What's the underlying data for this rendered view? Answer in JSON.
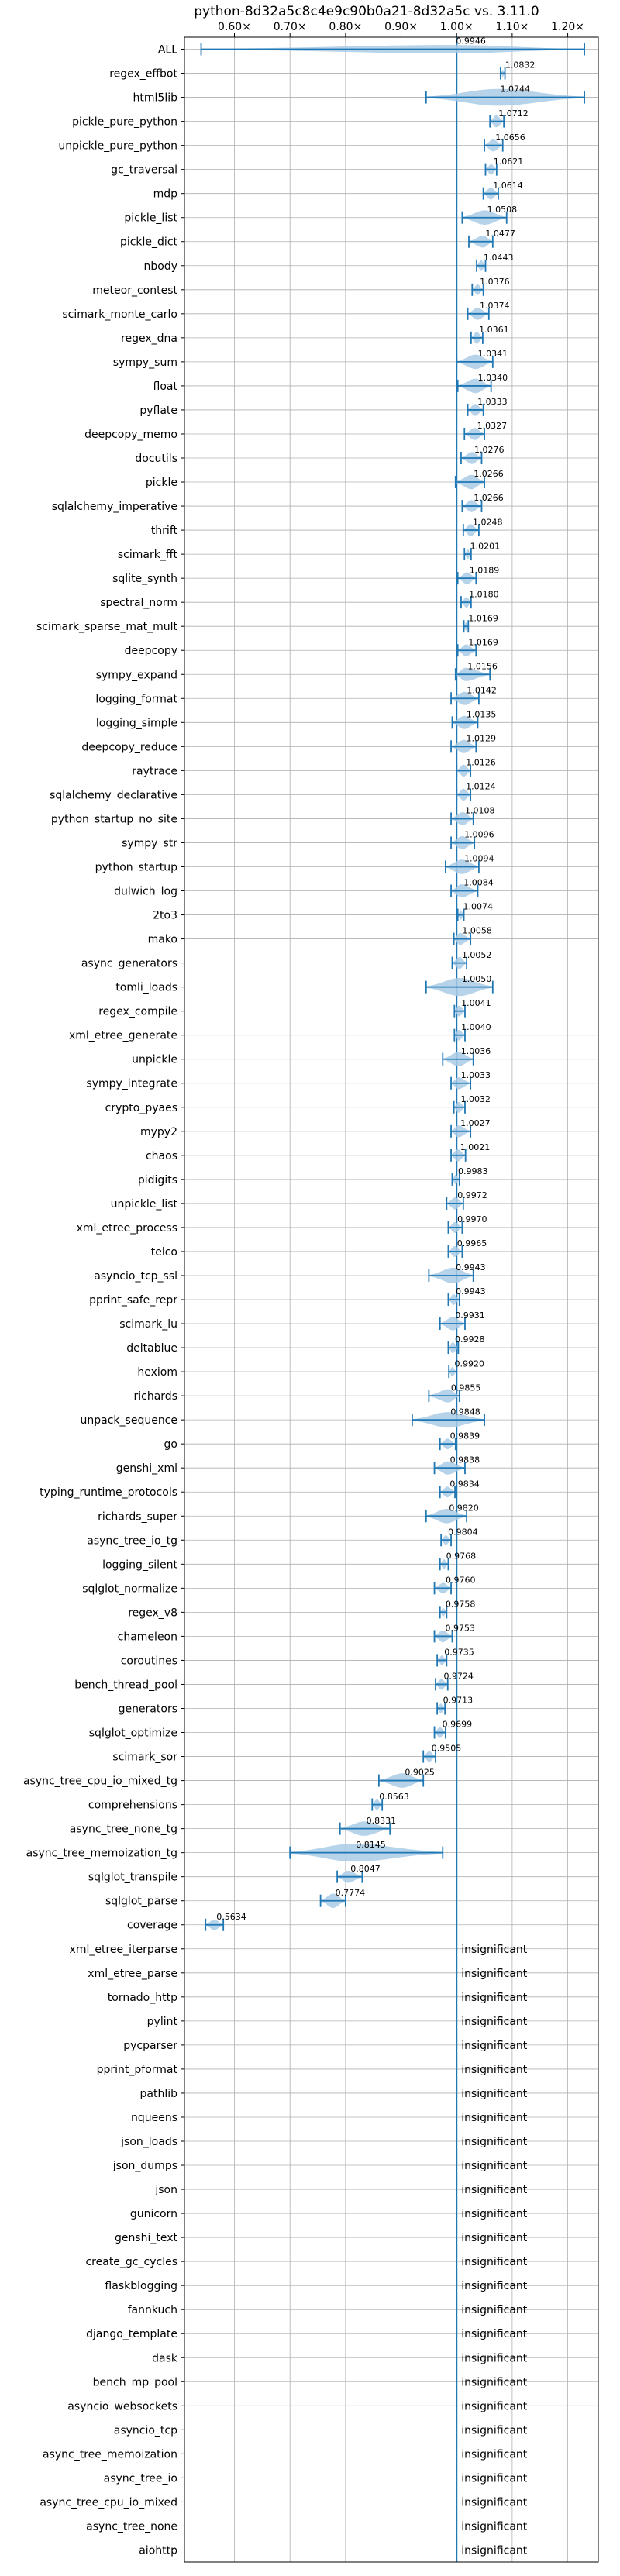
{
  "chart_data": {
    "type": "violin",
    "title": "python-8d32a5c8c4e9c90b0a21-8d32a5c vs. 3.11.0",
    "x_ticks": [
      {
        "value": 0.6,
        "label": "0.60×"
      },
      {
        "value": 0.7,
        "label": "0.70×"
      },
      {
        "value": 0.8,
        "label": "0.80×"
      },
      {
        "value": 0.9,
        "label": "0.90×"
      },
      {
        "value": 1.0,
        "label": "1.00×"
      },
      {
        "value": 1.1,
        "label": "1.10×"
      },
      {
        "value": 1.2,
        "label": "1.20×"
      }
    ],
    "xlim": [
      0.51,
      1.255
    ],
    "grid": true,
    "reference_line": 1.0,
    "insignificant_label": "insignificant",
    "benchmarks": [
      {
        "name": "ALL",
        "label": "0.9946",
        "center": 0.9946,
        "min": 0.54,
        "max": 1.23,
        "width": 0.35
      },
      {
        "name": "regex_effbot",
        "label": "1.0832",
        "center": 1.0832,
        "min": 1.079,
        "max": 1.087,
        "width": 0.3
      },
      {
        "name": "html5lib",
        "label": "1.0744",
        "center": 1.0744,
        "min": 0.945,
        "max": 1.23,
        "width": 0.7
      },
      {
        "name": "pickle_pure_python",
        "label": "1.0712",
        "center": 1.0712,
        "min": 1.06,
        "max": 1.085,
        "width": 0.5
      },
      {
        "name": "unpickle_pure_python",
        "label": "1.0656",
        "center": 1.0656,
        "min": 1.05,
        "max": 1.083,
        "width": 0.5
      },
      {
        "name": "gc_traversal",
        "label": "1.0621",
        "center": 1.0621,
        "min": 1.052,
        "max": 1.072,
        "width": 0.45
      },
      {
        "name": "mdp",
        "label": "1.0614",
        "center": 1.0614,
        "min": 1.048,
        "max": 1.075,
        "width": 0.5
      },
      {
        "name": "pickle_list",
        "label": "1.0508",
        "center": 1.0508,
        "min": 1.01,
        "max": 1.09,
        "width": 0.6
      },
      {
        "name": "pickle_dict",
        "label": "1.0477",
        "center": 1.0477,
        "min": 1.022,
        "max": 1.065,
        "width": 0.5
      },
      {
        "name": "nbody",
        "label": "1.0443",
        "center": 1.0443,
        "min": 1.036,
        "max": 1.052,
        "width": 0.45
      },
      {
        "name": "meteor_contest",
        "label": "1.0376",
        "center": 1.0376,
        "min": 1.028,
        "max": 1.048,
        "width": 0.45
      },
      {
        "name": "scimark_monte_carlo",
        "label": "1.0374",
        "center": 1.0374,
        "min": 1.02,
        "max": 1.058,
        "width": 0.5
      },
      {
        "name": "regex_dna",
        "label": "1.0361",
        "center": 1.0361,
        "min": 1.026,
        "max": 1.047,
        "width": 0.5
      },
      {
        "name": "sympy_sum",
        "label": "1.0341",
        "center": 1.0341,
        "min": 1.0,
        "max": 1.065,
        "width": 0.6
      },
      {
        "name": "float",
        "label": "1.0340",
        "center": 1.034,
        "min": 1.002,
        "max": 1.062,
        "width": 0.6
      },
      {
        "name": "pyflate",
        "label": "1.0333",
        "center": 1.0333,
        "min": 1.02,
        "max": 1.048,
        "width": 0.5
      },
      {
        "name": "deepcopy_memo",
        "label": "1.0327",
        "center": 1.0327,
        "min": 1.014,
        "max": 1.05,
        "width": 0.5
      },
      {
        "name": "docutils",
        "label": "1.0276",
        "center": 1.0276,
        "min": 1.008,
        "max": 1.045,
        "width": 0.5
      },
      {
        "name": "pickle",
        "label": "1.0266",
        "center": 1.0266,
        "min": 0.998,
        "max": 1.05,
        "width": 0.6
      },
      {
        "name": "sqlalchemy_imperative",
        "label": "1.0266",
        "center": 1.0266,
        "min": 1.01,
        "max": 1.045,
        "width": 0.5
      },
      {
        "name": "thrift",
        "label": "1.0248",
        "center": 1.0248,
        "min": 1.012,
        "max": 1.04,
        "width": 0.5
      },
      {
        "name": "scimark_fft",
        "label": "1.0201",
        "center": 1.0201,
        "min": 1.014,
        "max": 1.026,
        "width": 0.4
      },
      {
        "name": "sqlite_synth",
        "label": "1.0189",
        "center": 1.0189,
        "min": 1.002,
        "max": 1.035,
        "width": 0.5
      },
      {
        "name": "spectral_norm",
        "label": "1.0180",
        "center": 1.018,
        "min": 1.008,
        "max": 1.026,
        "width": 0.45
      },
      {
        "name": "scimark_sparse_mat_mult",
        "label": "1.0169",
        "center": 1.0169,
        "min": 1.013,
        "max": 1.021,
        "width": 0.35
      },
      {
        "name": "deepcopy",
        "label": "1.0169",
        "center": 1.0169,
        "min": 1.002,
        "max": 1.035,
        "width": 0.5
      },
      {
        "name": "sympy_expand",
        "label": "1.0156",
        "center": 1.0156,
        "min": 0.998,
        "max": 1.06,
        "width": 0.55
      },
      {
        "name": "logging_format",
        "label": "1.0142",
        "center": 1.0142,
        "min": 0.99,
        "max": 1.04,
        "width": 0.55
      },
      {
        "name": "logging_simple",
        "label": "1.0135",
        "center": 1.0135,
        "min": 0.992,
        "max": 1.038,
        "width": 0.55
      },
      {
        "name": "deepcopy_reduce",
        "label": "1.0129",
        "center": 1.0129,
        "min": 0.99,
        "max": 1.035,
        "width": 0.55
      },
      {
        "name": "raytrace",
        "label": "1.0126",
        "center": 1.0126,
        "min": 1.0,
        "max": 1.025,
        "width": 0.5
      },
      {
        "name": "sqlalchemy_declarative",
        "label": "1.0124",
        "center": 1.0124,
        "min": 1.0,
        "max": 1.025,
        "width": 0.5
      },
      {
        "name": "python_startup_no_site",
        "label": "1.0108",
        "center": 1.0108,
        "min": 0.99,
        "max": 1.03,
        "width": 0.55
      },
      {
        "name": "sympy_str",
        "label": "1.0096",
        "center": 1.0096,
        "min": 0.99,
        "max": 1.032,
        "width": 0.55
      },
      {
        "name": "python_startup",
        "label": "1.0094",
        "center": 1.0094,
        "min": 0.98,
        "max": 1.04,
        "width": 0.6
      },
      {
        "name": "dulwich_log",
        "label": "1.0084",
        "center": 1.0084,
        "min": 0.99,
        "max": 1.038,
        "width": 0.55
      },
      {
        "name": "2to3",
        "label": "1.0074",
        "center": 1.0074,
        "min": 1.002,
        "max": 1.013,
        "width": 0.4
      },
      {
        "name": "mako",
        "label": "1.0058",
        "center": 1.0058,
        "min": 0.995,
        "max": 1.025,
        "width": 0.5
      },
      {
        "name": "async_generators",
        "label": "1.0052",
        "center": 1.0052,
        "min": 0.992,
        "max": 1.018,
        "width": 0.5
      },
      {
        "name": "tomli_loads",
        "label": "1.0050",
        "center": 1.005,
        "min": 0.945,
        "max": 1.065,
        "width": 0.75
      },
      {
        "name": "regex_compile",
        "label": "1.0041",
        "center": 1.0041,
        "min": 0.996,
        "max": 1.015,
        "width": 0.45
      },
      {
        "name": "xml_etree_generate",
        "label": "1.0040",
        "center": 1.004,
        "min": 0.996,
        "max": 1.015,
        "width": 0.45
      },
      {
        "name": "unpickle",
        "label": "1.0036",
        "center": 1.0036,
        "min": 0.975,
        "max": 1.03,
        "width": 0.6
      },
      {
        "name": "sympy_integrate",
        "label": "1.0033",
        "center": 1.0033,
        "min": 0.99,
        "max": 1.025,
        "width": 0.5
      },
      {
        "name": "crypto_pyaes",
        "label": "1.0032",
        "center": 1.0032,
        "min": 0.995,
        "max": 1.015,
        "width": 0.45
      },
      {
        "name": "mypy2",
        "label": "1.0027",
        "center": 1.0027,
        "min": 0.99,
        "max": 1.025,
        "width": 0.5
      },
      {
        "name": "chaos",
        "label": "1.0021",
        "center": 1.0021,
        "min": 0.99,
        "max": 1.016,
        "width": 0.5
      },
      {
        "name": "pidigits",
        "label": "0.9983",
        "center": 0.9983,
        "min": 0.992,
        "max": 1.005,
        "width": 0.4
      },
      {
        "name": "unpickle_list",
        "label": "0.9972",
        "center": 0.9972,
        "min": 0.982,
        "max": 1.012,
        "width": 0.5
      },
      {
        "name": "xml_etree_process",
        "label": "0.9970",
        "center": 0.997,
        "min": 0.985,
        "max": 1.01,
        "width": 0.45
      },
      {
        "name": "telco",
        "label": "0.9965",
        "center": 0.9965,
        "min": 0.985,
        "max": 1.01,
        "width": 0.45
      },
      {
        "name": "asyncio_tcp_ssl",
        "label": "0.9943",
        "center": 0.9943,
        "min": 0.95,
        "max": 1.03,
        "width": 0.65
      },
      {
        "name": "pprint_safe_repr",
        "label": "0.9943",
        "center": 0.9943,
        "min": 0.985,
        "max": 1.005,
        "width": 0.45
      },
      {
        "name": "scimark_lu",
        "label": "0.9931",
        "center": 0.9931,
        "min": 0.97,
        "max": 1.015,
        "width": 0.55
      },
      {
        "name": "deltablue",
        "label": "0.9928",
        "center": 0.9928,
        "min": 0.985,
        "max": 1.003,
        "width": 0.45
      },
      {
        "name": "hexiom",
        "label": "0.9920",
        "center": 0.992,
        "min": 0.986,
        "max": 1.0,
        "width": 0.4
      },
      {
        "name": "richards",
        "label": "0.9855",
        "center": 0.9855,
        "min": 0.95,
        "max": 1.005,
        "width": 0.55
      },
      {
        "name": "unpack_sequence",
        "label": "0.9848",
        "center": 0.9848,
        "min": 0.92,
        "max": 1.05,
        "width": 0.65
      },
      {
        "name": "go",
        "label": "0.9839",
        "center": 0.9839,
        "min": 0.97,
        "max": 0.998,
        "width": 0.45
      },
      {
        "name": "genshi_xml",
        "label": "0.9838",
        "center": 0.9838,
        "min": 0.96,
        "max": 1.015,
        "width": 0.55
      },
      {
        "name": "typing_runtime_protocols",
        "label": "0.9834",
        "center": 0.9834,
        "min": 0.97,
        "max": 0.997,
        "width": 0.45
      },
      {
        "name": "richards_super",
        "label": "0.9820",
        "center": 0.982,
        "min": 0.945,
        "max": 1.018,
        "width": 0.6
      },
      {
        "name": "async_tree_io_tg",
        "label": "0.9804",
        "center": 0.9804,
        "min": 0.972,
        "max": 0.99,
        "width": 0.4
      },
      {
        "name": "logging_silent",
        "label": "0.9768",
        "center": 0.9768,
        "min": 0.97,
        "max": 0.985,
        "width": 0.4
      },
      {
        "name": "sqlglot_normalize",
        "label": "0.9760",
        "center": 0.976,
        "min": 0.96,
        "max": 0.99,
        "width": 0.45
      },
      {
        "name": "regex_v8",
        "label": "0.9758",
        "center": 0.9758,
        "min": 0.97,
        "max": 0.982,
        "width": 0.35
      },
      {
        "name": "chameleon",
        "label": "0.9753",
        "center": 0.9753,
        "min": 0.96,
        "max": 0.992,
        "width": 0.5
      },
      {
        "name": "coroutines",
        "label": "0.9735",
        "center": 0.9735,
        "min": 0.965,
        "max": 0.982,
        "width": 0.4
      },
      {
        "name": "bench_thread_pool",
        "label": "0.9724",
        "center": 0.9724,
        "min": 0.962,
        "max": 0.984,
        "width": 0.45
      },
      {
        "name": "generators",
        "label": "0.9713",
        "center": 0.9713,
        "min": 0.965,
        "max": 0.979,
        "width": 0.4
      },
      {
        "name": "sqlglot_optimize",
        "label": "0.9699",
        "center": 0.9699,
        "min": 0.96,
        "max": 0.98,
        "width": 0.45
      },
      {
        "name": "scimark_sor",
        "label": "0.9505",
        "center": 0.9505,
        "min": 0.94,
        "max": 0.962,
        "width": 0.45
      },
      {
        "name": "async_tree_cpu_io_mixed_tg",
        "label": "0.9025",
        "center": 0.9025,
        "min": 0.86,
        "max": 0.94,
        "width": 0.6
      },
      {
        "name": "comprehensions",
        "label": "0.8563",
        "center": 0.8563,
        "min": 0.848,
        "max": 0.866,
        "width": 0.45
      },
      {
        "name": "async_tree_none_tg",
        "label": "0.8331",
        "center": 0.8331,
        "min": 0.79,
        "max": 0.88,
        "width": 0.6
      },
      {
        "name": "async_tree_memoization_tg",
        "label": "0.8145",
        "center": 0.8145,
        "min": 0.7,
        "max": 0.975,
        "width": 0.75
      },
      {
        "name": "sqlglot_transpile",
        "label": "0.8047",
        "center": 0.8047,
        "min": 0.785,
        "max": 0.83,
        "width": 0.5
      },
      {
        "name": "sqlglot_parse",
        "label": "0.7774",
        "center": 0.7774,
        "min": 0.755,
        "max": 0.8,
        "width": 0.6
      },
      {
        "name": "coverage",
        "label": "0.5634",
        "center": 0.5634,
        "min": 0.548,
        "max": 0.58,
        "width": 0.45
      },
      {
        "name": "xml_etree_iterparse",
        "insignificant": true
      },
      {
        "name": "xml_etree_parse",
        "insignificant": true
      },
      {
        "name": "tornado_http",
        "insignificant": true
      },
      {
        "name": "pylint",
        "insignificant": true
      },
      {
        "name": "pycparser",
        "insignificant": true
      },
      {
        "name": "pprint_pformat",
        "insignificant": true
      },
      {
        "name": "pathlib",
        "insignificant": true
      },
      {
        "name": "nqueens",
        "insignificant": true
      },
      {
        "name": "json_loads",
        "insignificant": true
      },
      {
        "name": "json_dumps",
        "insignificant": true
      },
      {
        "name": "json",
        "insignificant": true
      },
      {
        "name": "gunicorn",
        "insignificant": true
      },
      {
        "name": "genshi_text",
        "insignificant": true
      },
      {
        "name": "create_gc_cycles",
        "insignificant": true
      },
      {
        "name": "flaskblogging",
        "insignificant": true
      },
      {
        "name": "fannkuch",
        "insignificant": true
      },
      {
        "name": "django_template",
        "insignificant": true
      },
      {
        "name": "dask",
        "insignificant": true
      },
      {
        "name": "bench_mp_pool",
        "insignificant": true
      },
      {
        "name": "asyncio_websockets",
        "insignificant": true
      },
      {
        "name": "asyncio_tcp",
        "insignificant": true
      },
      {
        "name": "async_tree_memoization",
        "insignificant": true
      },
      {
        "name": "async_tree_io",
        "insignificant": true
      },
      {
        "name": "async_tree_cpu_io_mixed",
        "insignificant": true
      },
      {
        "name": "async_tree_none",
        "insignificant": true
      },
      {
        "name": "aiohttp",
        "insignificant": true
      }
    ]
  },
  "colors": {
    "violin_fill": "#a9cbe6",
    "line": "#1f77b4",
    "grid": "#b0b0b0",
    "axis": "#000000",
    "text": "#000000"
  }
}
